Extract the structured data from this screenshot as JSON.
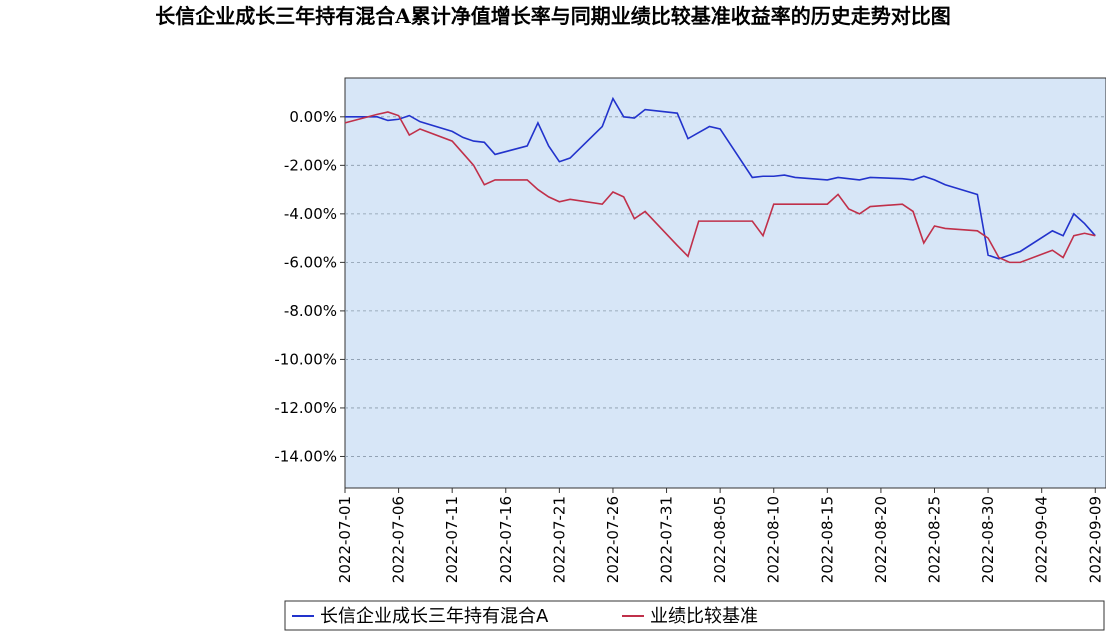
{
  "chart_data": {
    "type": "line",
    "title": "长信企业成长三年持有混合A累计净值增长率与同期业绩比较基准收益率的历史走势对比图",
    "x": [
      "2022-07-01",
      "2022-07-04",
      "2022-07-05",
      "2022-07-06",
      "2022-07-07",
      "2022-07-08",
      "2022-07-11",
      "2022-07-12",
      "2022-07-13",
      "2022-07-14",
      "2022-07-15",
      "2022-07-18",
      "2022-07-19",
      "2022-07-20",
      "2022-07-21",
      "2022-07-22",
      "2022-07-25",
      "2022-07-26",
      "2022-07-27",
      "2022-07-28",
      "2022-07-29",
      "2022-08-01",
      "2022-08-02",
      "2022-08-03",
      "2022-08-04",
      "2022-08-05",
      "2022-08-08",
      "2022-08-09",
      "2022-08-10",
      "2022-08-11",
      "2022-08-12",
      "2022-08-15",
      "2022-08-16",
      "2022-08-17",
      "2022-08-18",
      "2022-08-19",
      "2022-08-22",
      "2022-08-23",
      "2022-08-24",
      "2022-08-25",
      "2022-08-26",
      "2022-08-29",
      "2022-08-30",
      "2022-08-31",
      "2022-09-01",
      "2022-09-02",
      "2022-09-05",
      "2022-09-06",
      "2022-09-07",
      "2022-09-08",
      "2022-09-09"
    ],
    "series": [
      {
        "name": "长信企业成长三年持有混合A",
        "color": "#2233cc",
        "values": [
          0.0,
          0.0,
          -0.15,
          -0.1,
          0.05,
          -0.2,
          -0.6,
          -0.85,
          -1.0,
          -1.05,
          -1.55,
          -1.2,
          -0.25,
          -1.2,
          -1.85,
          -1.7,
          -0.4,
          0.75,
          0.0,
          -0.05,
          0.3,
          0.15,
          -0.9,
          -0.65,
          -0.4,
          -0.5,
          -2.5,
          -2.45,
          -2.45,
          -2.4,
          -2.5,
          -2.6,
          -2.5,
          -2.55,
          -2.6,
          -2.5,
          -2.55,
          -2.6,
          -2.45,
          -2.6,
          -2.8,
          -3.2,
          -5.7,
          -5.85,
          -5.7,
          -5.55,
          -4.7,
          -4.9,
          -4.0,
          -4.4,
          -4.9
        ]
      },
      {
        "name": "业绩比较基准",
        "color": "#c0304a",
        "values": [
          -0.25,
          0.1,
          0.2,
          0.05,
          -0.75,
          -0.5,
          -1.0,
          -1.5,
          -2.0,
          -2.8,
          -2.6,
          -2.6,
          -3.0,
          -3.3,
          -3.5,
          -3.4,
          -3.6,
          -3.1,
          -3.3,
          -4.2,
          -3.9,
          -5.3,
          -5.75,
          -4.3,
          -4.3,
          -4.3,
          -4.3,
          -4.9,
          -3.6,
          -3.6,
          -3.6,
          -3.6,
          -3.2,
          -3.8,
          -4.0,
          -3.7,
          -3.6,
          -3.9,
          -5.2,
          -4.5,
          -4.6,
          -4.7,
          -5.0,
          -5.8,
          -6.0,
          -6.0,
          -5.5,
          -5.8,
          -4.9,
          -4.8,
          -4.9
        ]
      }
    ],
    "xlim": [
      "2022-07-01",
      "2022-09-10"
    ],
    "xticks": [
      "2022-07-01",
      "2022-07-06",
      "2022-07-11",
      "2022-07-16",
      "2022-07-21",
      "2022-07-26",
      "2022-07-31",
      "2022-08-05",
      "2022-08-10",
      "2022-08-15",
      "2022-08-20",
      "2022-08-25",
      "2022-08-30",
      "2022-09-04",
      "2022-09-09"
    ],
    "ylim": [
      -15.3,
      1.6
    ],
    "yticks": [
      {
        "value": 0,
        "label": "0.00%"
      },
      {
        "value": -2,
        "label": "-2.00%"
      },
      {
        "value": -4,
        "label": "-4.00%"
      },
      {
        "value": -6,
        "label": "-6.00%"
      },
      {
        "value": -8,
        "label": "-8.00%"
      },
      {
        "value": -10,
        "label": "-10.00%"
      },
      {
        "value": -12,
        "label": "-12.00%"
      },
      {
        "value": -14,
        "label": "-14.00%"
      }
    ],
    "grid": true
  }
}
